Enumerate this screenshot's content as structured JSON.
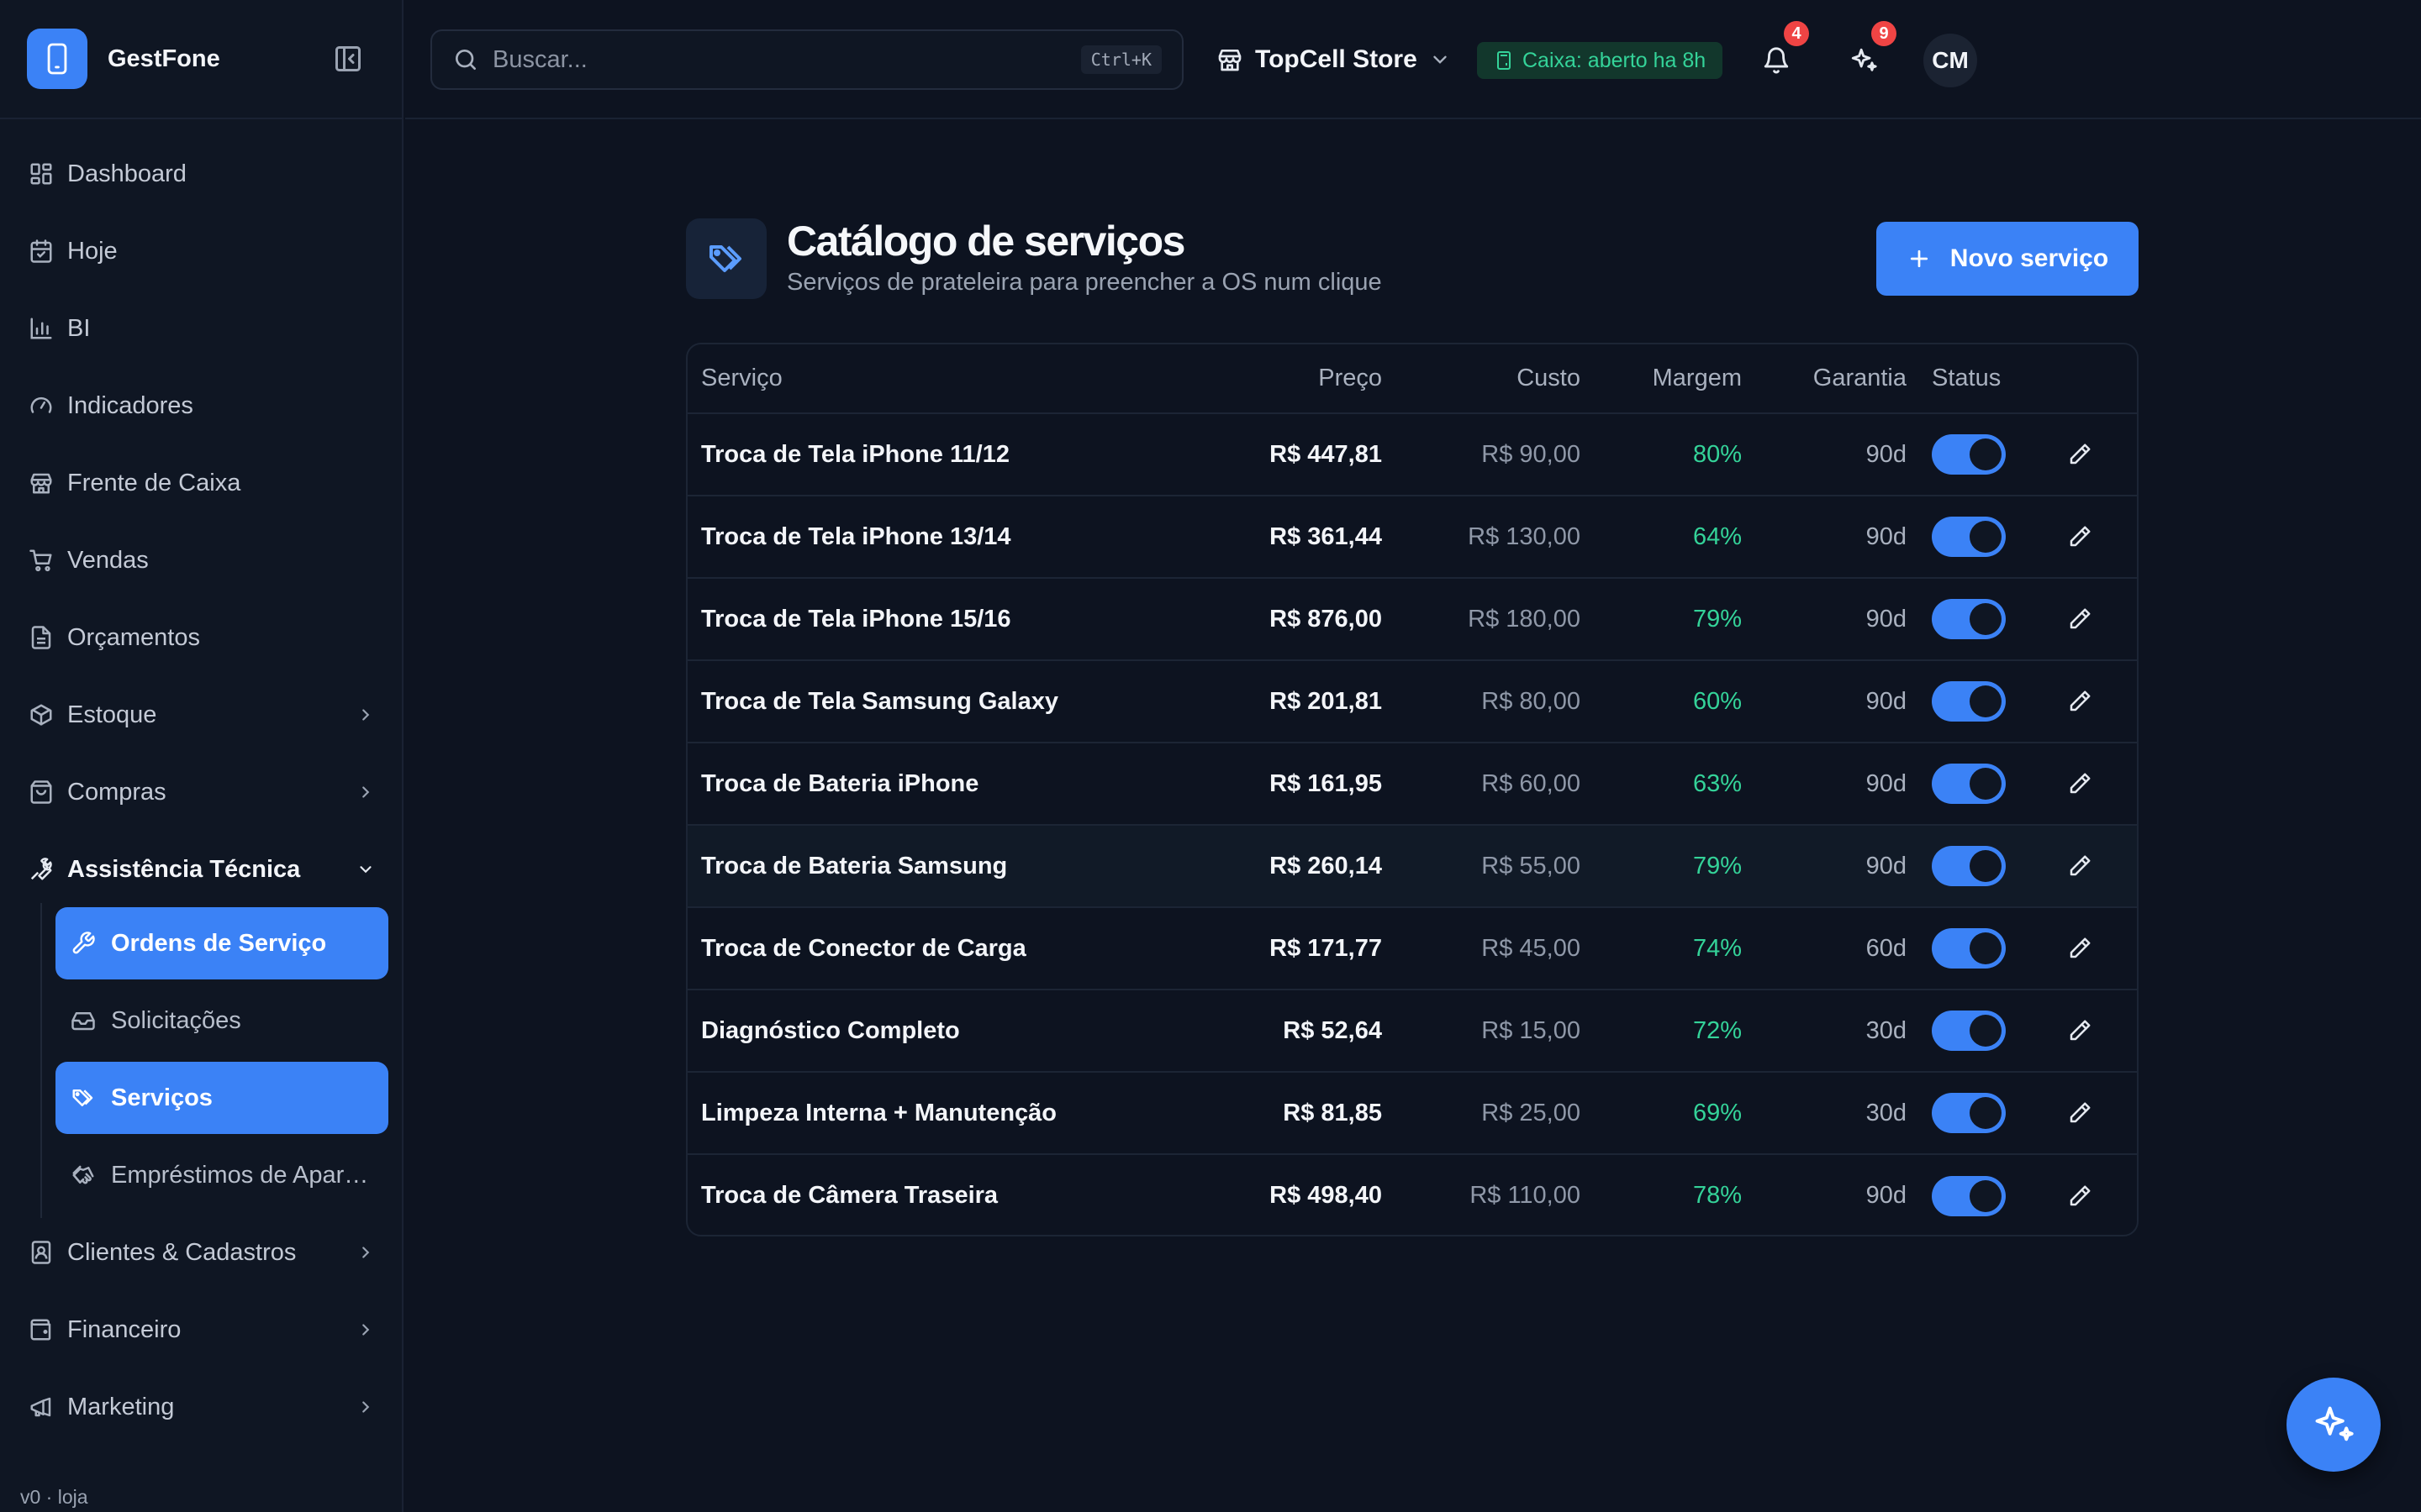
{
  "app": {
    "name": "GestFone",
    "version": "v0 · loja"
  },
  "sidebar": {
    "items": [
      {
        "label": "Dashboard",
        "icon": "dashboard-icon"
      },
      {
        "label": "Hoje",
        "icon": "calendar-icon"
      },
      {
        "label": "BI",
        "icon": "bar-chart-icon"
      },
      {
        "label": "Indicadores",
        "icon": "gauge-icon"
      },
      {
        "label": "Frente de Caixa",
        "icon": "store-icon"
      },
      {
        "label": "Vendas",
        "icon": "cart-icon"
      },
      {
        "label": "Orçamentos",
        "icon": "document-icon"
      },
      {
        "label": "Estoque",
        "icon": "package-icon"
      },
      {
        "label": "Compras",
        "icon": "shopping-bag-icon"
      },
      {
        "label": "Assistência Técnica",
        "icon": "wrench-icon"
      },
      {
        "label": "Clientes & Cadastros",
        "icon": "contact-icon"
      },
      {
        "label": "Financeiro",
        "icon": "wallet-icon"
      },
      {
        "label": "Marketing",
        "icon": "megaphone-icon"
      }
    ],
    "sub_items": [
      {
        "label": "Ordens de Serviço",
        "icon": "wrench-icon"
      },
      {
        "label": "Solicitações",
        "icon": "inbox-icon"
      },
      {
        "label": "Serviços",
        "icon": "tags-icon"
      },
      {
        "label": "Empréstimos de Aparelhos",
        "icon": "handshake-icon"
      }
    ]
  },
  "topbar": {
    "search_placeholder": "Buscar...",
    "search_shortcut": "Ctrl+K",
    "store": "TopCell Store",
    "cashbox": "Caixa: aberto ha 8h",
    "notifications_count": "4",
    "ai_count": "9",
    "avatar_initials": "CM"
  },
  "page": {
    "title": "Catálogo de serviços",
    "subtitle": "Serviços de prateleira para preencher a OS num clique",
    "new_button": "Novo serviço"
  },
  "table": {
    "headers": [
      "Serviço",
      "Preço",
      "Custo",
      "Margem",
      "Garantia",
      "Status"
    ],
    "rows": [
      {
        "name": "Troca de Tela iPhone 11/12",
        "price": "R$ 447,81",
        "cost": "R$ 90,00",
        "margin": "80%",
        "warranty": "90d",
        "active": true
      },
      {
        "name": "Troca de Tela iPhone 13/14",
        "price": "R$ 361,44",
        "cost": "R$ 130,00",
        "margin": "64%",
        "warranty": "90d",
        "active": true
      },
      {
        "name": "Troca de Tela iPhone 15/16",
        "price": "R$ 876,00",
        "cost": "R$ 180,00",
        "margin": "79%",
        "warranty": "90d",
        "active": true
      },
      {
        "name": "Troca de Tela Samsung Galaxy",
        "price": "R$ 201,81",
        "cost": "R$ 80,00",
        "margin": "60%",
        "warranty": "90d",
        "active": true
      },
      {
        "name": "Troca de Bateria iPhone",
        "price": "R$ 161,95",
        "cost": "R$ 60,00",
        "margin": "63%",
        "warranty": "90d",
        "active": true
      },
      {
        "name": "Troca de Bateria Samsung",
        "price": "R$ 260,14",
        "cost": "R$ 55,00",
        "margin": "79%",
        "warranty": "90d",
        "active": true
      },
      {
        "name": "Troca de Conector de Carga",
        "price": "R$ 171,77",
        "cost": "R$ 45,00",
        "margin": "74%",
        "warranty": "60d",
        "active": true
      },
      {
        "name": "Diagnóstico Completo",
        "price": "R$ 52,64",
        "cost": "R$ 15,00",
        "margin": "72%",
        "warranty": "30d",
        "active": true
      },
      {
        "name": "Limpeza Interna + Manutenção",
        "price": "R$ 81,85",
        "cost": "R$ 25,00",
        "margin": "69%",
        "warranty": "30d",
        "active": true
      },
      {
        "name": "Troca de Câmera Traseira",
        "price": "R$ 498,40",
        "cost": "R$ 110,00",
        "margin": "78%",
        "warranty": "90d",
        "active": true
      }
    ]
  },
  "colors": {
    "accent": "#3b82f6",
    "margin_green": "#34d399",
    "badge_red": "#ef4444",
    "background": "#0d1320"
  }
}
